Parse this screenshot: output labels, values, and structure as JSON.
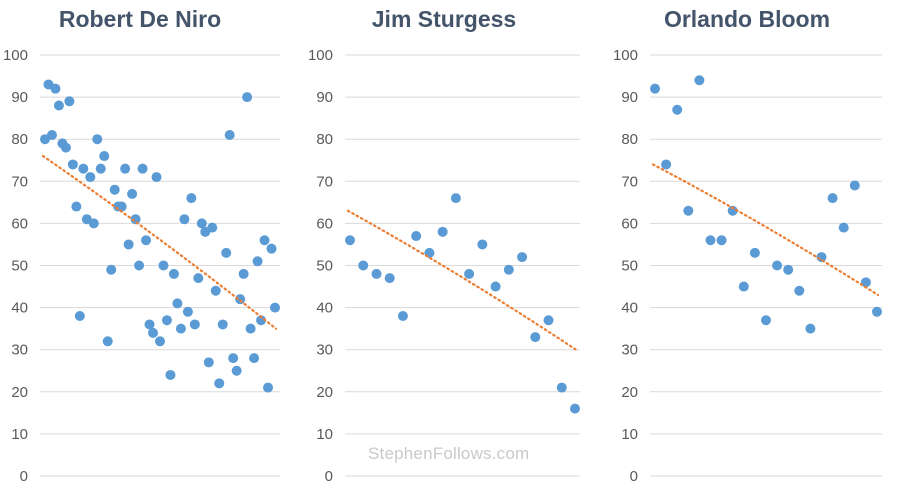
{
  "watermark": "StephenFollows.com",
  "colors": {
    "points": "#5b9bd5",
    "trend": "#ed7d31",
    "grid": "#d9d9d9",
    "title": "#44546a",
    "tick": "#595959"
  },
  "chart_data": [
    {
      "type": "scatter",
      "title": "Robert De Niro",
      "ylim": [
        0,
        100
      ],
      "yticks": [
        0,
        10,
        20,
        30,
        40,
        50,
        60,
        70,
        80,
        90,
        100
      ],
      "grid": true,
      "trendline": {
        "style": "dotted",
        "start": 76,
        "end": 35
      },
      "y": [
        80,
        93,
        81,
        92,
        88,
        79,
        78,
        89,
        74,
        64,
        38,
        73,
        61,
        71,
        60,
        80,
        73,
        76,
        32,
        49,
        68,
        64,
        64,
        73,
        55,
        67,
        61,
        50,
        73,
        56,
        36,
        34,
        71,
        32,
        50,
        37,
        24,
        48,
        41,
        35,
        61,
        39,
        66,
        36,
        47,
        60,
        58,
        27,
        59,
        44,
        22,
        36,
        53,
        81,
        28,
        25,
        42,
        48,
        90,
        35,
        28,
        51,
        37,
        56,
        21,
        54,
        40
      ]
    },
    {
      "type": "scatter",
      "title": "Jim Sturgess",
      "ylim": [
        0,
        100
      ],
      "yticks": [
        0,
        10,
        20,
        30,
        40,
        50,
        60,
        70,
        80,
        90,
        100
      ],
      "grid": true,
      "trendline": {
        "style": "dotted",
        "start": 63,
        "end": 30
      },
      "y": [
        56,
        50,
        48,
        47,
        38,
        57,
        53,
        58,
        66,
        48,
        55,
        45,
        49,
        52,
        33,
        37,
        21,
        16
      ]
    },
    {
      "type": "scatter",
      "title": "Orlando Bloom",
      "ylim": [
        0,
        100
      ],
      "yticks": [
        0,
        10,
        20,
        30,
        40,
        50,
        60,
        70,
        80,
        90,
        100
      ],
      "grid": true,
      "trendline": {
        "style": "dotted",
        "start": 74,
        "end": 43
      },
      "y": [
        92,
        74,
        87,
        63,
        94,
        56,
        56,
        63,
        45,
        53,
        37,
        50,
        49,
        44,
        35,
        52,
        66,
        59,
        69,
        46,
        39
      ]
    }
  ]
}
